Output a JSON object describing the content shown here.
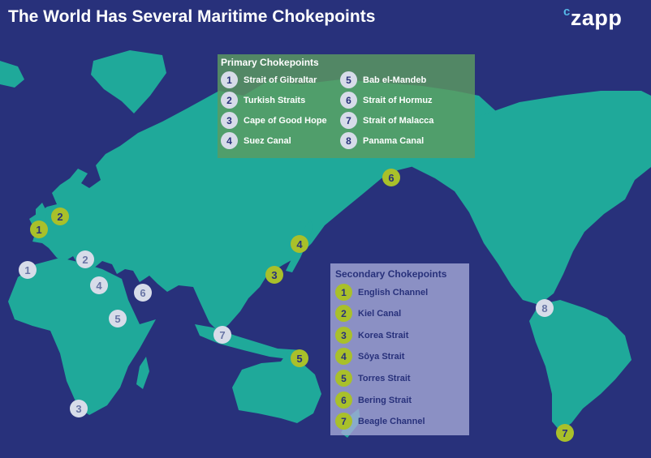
{
  "title": "The World Has Several Maritime Chokepoints",
  "brand": {
    "prefix": "c",
    "name": "zapp"
  },
  "colors": {
    "ocean": "#28317b",
    "land": "#1fa99a",
    "primary_marker": "#d7dce9",
    "secondary_marker": "#a9c02a",
    "primary_box": "#5c9b60",
    "secondary_box": "#a8acd8"
  },
  "primary": {
    "title": "Primary Chokepoints",
    "items": [
      {
        "num": "1",
        "label": "Strait of Gibraltar"
      },
      {
        "num": "2",
        "label": "Turkish Straits"
      },
      {
        "num": "3",
        "label": "Cape of Good Hope"
      },
      {
        "num": "4",
        "label": "Suez Canal"
      },
      {
        "num": "5",
        "label": "Bab el-Mandeb"
      },
      {
        "num": "6",
        "label": "Strait of Hormuz"
      },
      {
        "num": "7",
        "label": "Strait of Malacca"
      },
      {
        "num": "8",
        "label": "Panama Canal"
      }
    ]
  },
  "secondary": {
    "title": "Secondary Chokepoints",
    "items": [
      {
        "num": "1",
        "label": "English Channel"
      },
      {
        "num": "2",
        "label": "Kiel Canal"
      },
      {
        "num": "3",
        "label": "Korea Strait"
      },
      {
        "num": "4",
        "label": "Sôya Strait"
      },
      {
        "num": "5",
        "label": "Torres Strait"
      },
      {
        "num": "6",
        "label": "Bering Strait"
      },
      {
        "num": "7",
        "label": "Beagle Channel"
      }
    ]
  },
  "markers": {
    "primary": [
      "1",
      "2",
      "3",
      "4",
      "5",
      "6",
      "7",
      "8"
    ],
    "secondary": [
      "1",
      "2",
      "3",
      "4",
      "5",
      "6",
      "7"
    ]
  }
}
